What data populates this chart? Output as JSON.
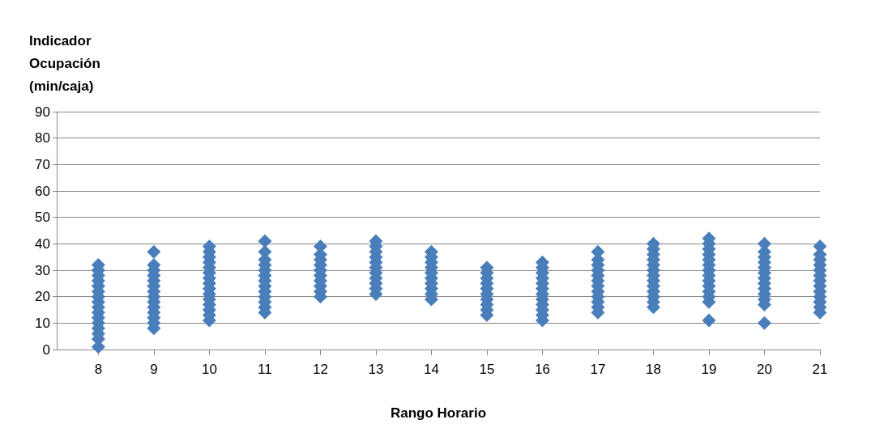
{
  "chart_data": {
    "type": "scatter",
    "xlabel": "Rango Horario",
    "ylabel": "Indicador Ocupación (min/caja)",
    "xlim": [
      7.25,
      21
    ],
    "xticks": [
      8,
      9,
      10,
      11,
      12,
      13,
      14,
      15,
      16,
      17,
      18,
      19,
      20,
      21
    ],
    "ylim": [
      0,
      90
    ],
    "yticks": [
      0,
      10,
      20,
      30,
      40,
      50,
      60,
      70,
      80,
      90
    ],
    "grid": "y",
    "marker": "diamond",
    "series": [
      {
        "color": "#4a7ebb",
        "x": [
          8,
          8,
          8,
          8,
          8,
          8,
          8,
          8,
          8,
          8,
          8,
          8,
          8,
          8,
          8,
          8,
          9,
          9,
          9,
          9,
          9,
          9,
          9,
          9,
          9,
          9,
          9,
          9,
          9,
          9,
          10,
          10,
          10,
          10,
          10,
          10,
          10,
          10,
          10,
          10,
          10,
          10,
          10,
          10,
          10,
          11,
          11,
          11,
          11,
          11,
          11,
          11,
          11,
          11,
          11,
          11,
          11,
          11,
          12,
          12,
          12,
          12,
          12,
          12,
          12,
          12,
          12,
          12,
          13,
          13,
          13,
          13,
          13,
          13,
          13,
          13,
          13,
          13,
          13,
          14,
          14,
          14,
          14,
          14,
          14,
          14,
          14,
          14,
          14,
          15,
          15,
          15,
          15,
          15,
          15,
          15,
          15,
          15,
          15,
          16,
          16,
          16,
          16,
          16,
          16,
          16,
          16,
          16,
          16,
          16,
          16,
          17,
          17,
          17,
          17,
          17,
          17,
          17,
          17,
          17,
          17,
          17,
          17,
          18,
          18,
          18,
          18,
          18,
          18,
          18,
          18,
          18,
          18,
          18,
          18,
          18,
          19,
          19,
          19,
          19,
          19,
          19,
          19,
          19,
          19,
          19,
          19,
          19,
          19,
          19,
          20,
          20,
          20,
          20,
          20,
          20,
          20,
          20,
          20,
          20,
          20,
          20,
          20,
          21,
          21,
          21,
          21,
          21,
          21,
          21,
          21,
          21,
          21,
          21,
          21,
          21
        ],
        "values": [
          1,
          4,
          6,
          8,
          10,
          12,
          14,
          16,
          18,
          20,
          22,
          24,
          26,
          28,
          30,
          32,
          8,
          10,
          12,
          14,
          16,
          18,
          20,
          22,
          24,
          26,
          28,
          30,
          32,
          37,
          11,
          13,
          15,
          17,
          19,
          21,
          23,
          25,
          27,
          29,
          31,
          33,
          35,
          37,
          39,
          14,
          16,
          18,
          20,
          22,
          24,
          26,
          28,
          30,
          32,
          34,
          37,
          41,
          20,
          22,
          24,
          26,
          28,
          30,
          32,
          34,
          36,
          39,
          21,
          23,
          25,
          27,
          29,
          31,
          33,
          35,
          37,
          39,
          41,
          19,
          21,
          23,
          25,
          27,
          29,
          31,
          33,
          35,
          37,
          13,
          15,
          17,
          19,
          21,
          23,
          25,
          27,
          29,
          31,
          11,
          13,
          15,
          17,
          19,
          21,
          23,
          25,
          27,
          29,
          31,
          33,
          14,
          16,
          18,
          20,
          22,
          24,
          26,
          28,
          30,
          32,
          34,
          37,
          16,
          18,
          20,
          22,
          24,
          26,
          28,
          30,
          32,
          34,
          36,
          38,
          40,
          11,
          18,
          20,
          22,
          24,
          26,
          28,
          30,
          32,
          34,
          36,
          38,
          40,
          42,
          10,
          17,
          19,
          21,
          23,
          25,
          27,
          29,
          31,
          33,
          35,
          37,
          40,
          14,
          16,
          18,
          20,
          22,
          24,
          26,
          28,
          30,
          32,
          34,
          36,
          39
        ]
      }
    ]
  }
}
